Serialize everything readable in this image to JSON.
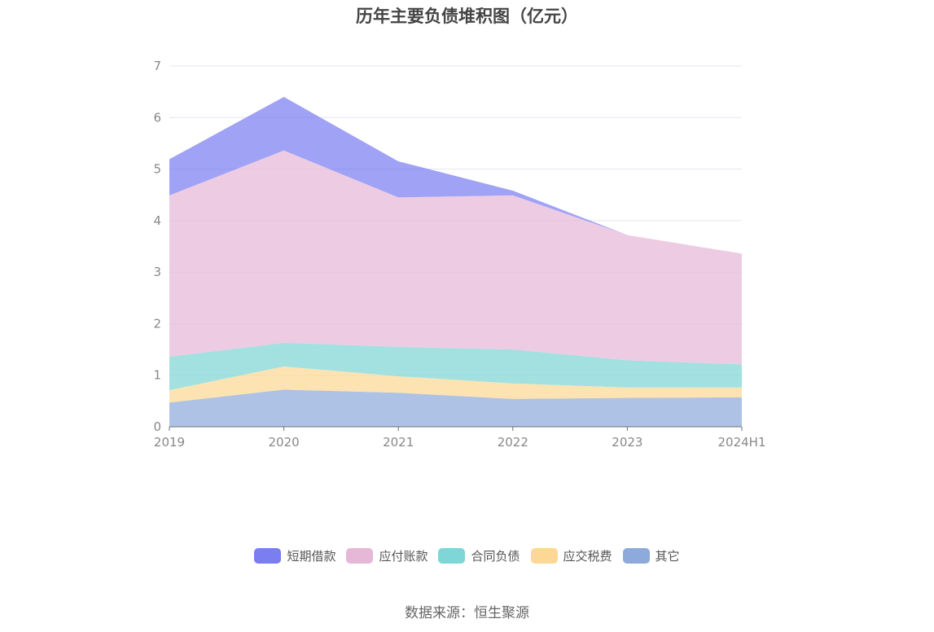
{
  "chart_data": {
    "type": "area",
    "stacked": true,
    "title": "历年主要负债堆积图（亿元）",
    "categories": [
      "2019",
      "2020",
      "2021",
      "2022",
      "2023",
      "2024H1"
    ],
    "ylim": [
      0,
      7
    ],
    "yticks": [
      "0",
      "1",
      "2",
      "3",
      "4",
      "5",
      "6",
      "7"
    ],
    "grid": "horizontal",
    "legend_position": "bottom",
    "series": [
      {
        "name": "其它",
        "color": "#8eaadb",
        "values": [
          0.47,
          0.72,
          0.66,
          0.54,
          0.56,
          0.57
        ]
      },
      {
        "name": "应交税费",
        "color": "#fdd894",
        "values": [
          0.24,
          0.45,
          0.32,
          0.3,
          0.2,
          0.19
        ]
      },
      {
        "name": "合同负债",
        "color": "#7fd6d6",
        "values": [
          0.65,
          0.46,
          0.57,
          0.66,
          0.53,
          0.45
        ]
      },
      {
        "name": "应付账款",
        "color": "#e6b8d8",
        "values": [
          3.13,
          3.73,
          2.9,
          2.99,
          2.43,
          2.15
        ]
      },
      {
        "name": "短期借款",
        "color": "#7a7ef1",
        "values": [
          0.7,
          1.04,
          0.7,
          0.09,
          0.0,
          0.0
        ]
      }
    ]
  },
  "legend_order": [
    "短期借款",
    "应付账款",
    "合同负债",
    "应交税费",
    "其它"
  ],
  "source_note": "数据来源：恒生聚源"
}
